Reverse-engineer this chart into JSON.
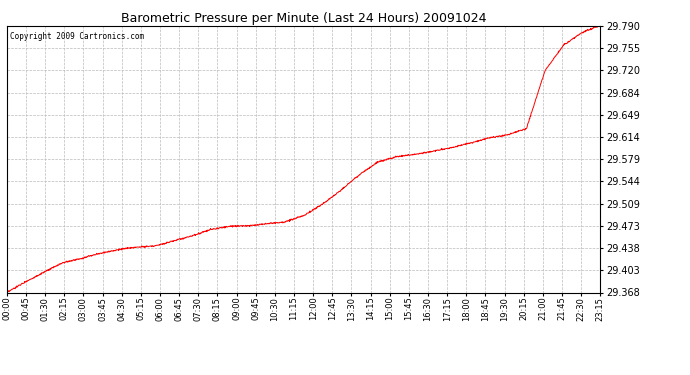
{
  "title": "Barometric Pressure per Minute (Last 24 Hours) 20091024",
  "copyright": "Copyright 2009 Cartronics.com",
  "line_color": "#ff0000",
  "bg_color": "#ffffff",
  "plot_bg_color": "#ffffff",
  "grid_color": "#bbbbbb",
  "ylim": [
    29.368,
    29.79
  ],
  "yticks": [
    29.368,
    29.403,
    29.438,
    29.473,
    29.509,
    29.544,
    29.579,
    29.614,
    29.649,
    29.684,
    29.72,
    29.755,
    29.79
  ],
  "xtick_labels": [
    "00:00",
    "00:45",
    "01:30",
    "02:15",
    "03:00",
    "03:45",
    "04:30",
    "05:15",
    "06:00",
    "06:45",
    "07:30",
    "08:15",
    "09:00",
    "09:45",
    "10:30",
    "11:15",
    "12:00",
    "12:45",
    "13:30",
    "14:15",
    "15:00",
    "15:45",
    "16:30",
    "17:15",
    "18:00",
    "18:45",
    "19:30",
    "20:15",
    "21:00",
    "21:45",
    "22:30",
    "23:15"
  ],
  "n_points": 1440,
  "waypoints_x": [
    0,
    45,
    90,
    135,
    180,
    225,
    270,
    315,
    360,
    405,
    450,
    495,
    540,
    585,
    630,
    675,
    720,
    765,
    810,
    855,
    900,
    945,
    990,
    1035,
    1080,
    1125,
    1170,
    1215,
    1260,
    1305,
    1350,
    1395,
    1439
  ],
  "waypoints_y": [
    29.368,
    29.385,
    29.4,
    29.415,
    29.422,
    29.43,
    29.436,
    29.44,
    29.442,
    29.45,
    29.458,
    29.468,
    29.473,
    29.474,
    29.477,
    29.48,
    29.49,
    29.508,
    29.53,
    29.555,
    29.575,
    29.583,
    29.587,
    29.592,
    29.598,
    29.605,
    29.613,
    29.618,
    29.628,
    29.72,
    29.76,
    29.78,
    29.792
  ]
}
